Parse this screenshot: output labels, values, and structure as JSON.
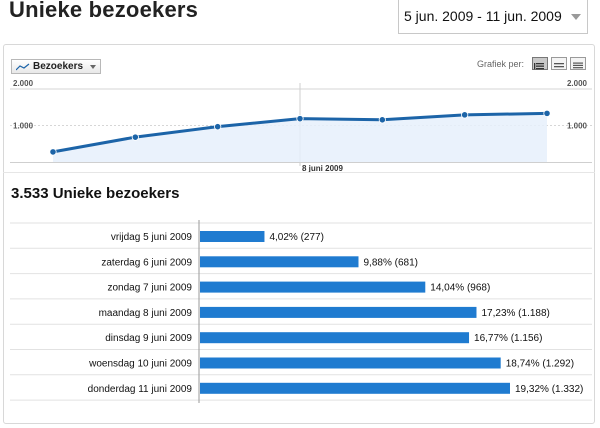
{
  "header": {
    "title": "Unieke bezoekers",
    "date_range": "5 jun. 2009 - 11 jun. 2009"
  },
  "graph_controls": {
    "metric_label": "Bezoekers",
    "graph_by_label": "Grafiek per:",
    "icons": [
      "day-view-icon",
      "week-view-icon",
      "month-view-icon"
    ]
  },
  "colors": {
    "line": "#1c64a8",
    "fill": "#e6f0fb",
    "bar": "#1f7bd0"
  },
  "summary": {
    "title": "3.533 Unieke bezoekers"
  },
  "chart_data": [
    {
      "type": "area",
      "x": [
        "5 juni 2009",
        "6 juni 2009",
        "7 juni 2009",
        "8 juni 2009",
        "9 juni 2009",
        "10 juni 2009",
        "11 juni 2009"
      ],
      "series": [
        {
          "values": [
            277,
            681,
            968,
            1188,
            1156,
            1292,
            1332
          ]
        }
      ],
      "ylim": [
        0,
        2000
      ],
      "y_ticks": [
        "2.000",
        "1.000"
      ],
      "x_tick_labels": [
        "8 juni 2009"
      ],
      "grid": true
    },
    {
      "type": "bar",
      "orientation": "horizontal",
      "categories": [
        "vrijdag 5 juni 2009",
        "zaterdag 6 juni 2009",
        "zondag 7 juni 2009",
        "maandag 8 juni 2009",
        "dinsdag 9 juni 2009",
        "woensdag 10 juni 2009",
        "donderdag 11 juni 2009"
      ],
      "values": [
        277,
        681,
        968,
        1188,
        1156,
        1292,
        1332
      ],
      "labels": [
        "4,02% (277)",
        "9,88% (681)",
        "14,04% (968)",
        "17,23% (1.188)",
        "16,77% (1.156)",
        "18,74% (1.292)",
        "19,32% (1.332)"
      ]
    }
  ]
}
